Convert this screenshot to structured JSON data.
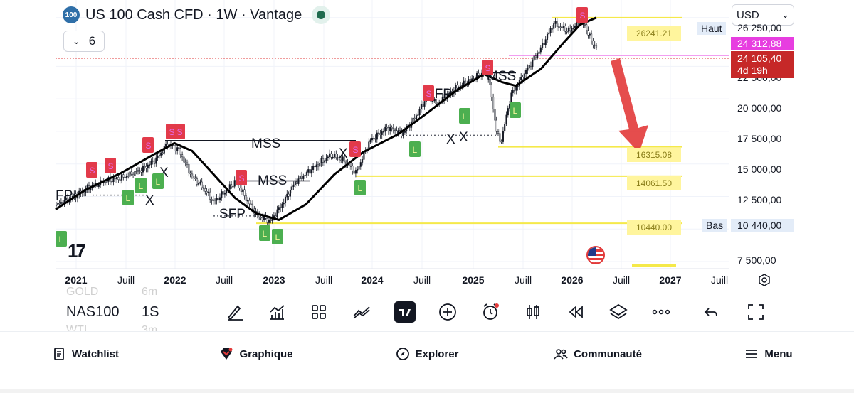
{
  "header": {
    "symbol_badge": "100",
    "title": "US 100 Cash CFD · 1W · Vantage",
    "indicators_count": "6",
    "currency": "USD"
  },
  "price_axis": {
    "labels": [
      "26 250,00",
      "22 500,00",
      "20 000,00",
      "17 500,00",
      "15 000,00",
      "12 500,00",
      "10 440,00",
      "7 500,00"
    ],
    "high_label": "Haut",
    "low_label": "Bas",
    "tag_magenta": "24 312,88",
    "tag_red_price": "24 105,40",
    "tag_red_countdown": "4d 19h",
    "tag_low": "10 440,00"
  },
  "time_axis": [
    {
      "label": "2021",
      "year": true
    },
    {
      "label": "Juill",
      "year": false
    },
    {
      "label": "2022",
      "year": true
    },
    {
      "label": "Juill",
      "year": false
    },
    {
      "label": "2023",
      "year": true
    },
    {
      "label": "Juill",
      "year": false
    },
    {
      "label": "2024",
      "year": true
    },
    {
      "label": "Juill",
      "year": false
    },
    {
      "label": "2025",
      "year": true
    },
    {
      "label": "Juill",
      "year": false
    },
    {
      "label": "2026",
      "year": true
    },
    {
      "label": "Juill",
      "year": false
    },
    {
      "label": "2027",
      "year": true
    },
    {
      "label": "Juill",
      "year": false
    }
  ],
  "levels": [
    {
      "label": "26241.21",
      "price": 26241.21
    },
    {
      "label": "16315.08",
      "price": 16315.08
    },
    {
      "label": "14061.50",
      "price": 14061.5
    },
    {
      "label": "10440.00",
      "price": 10440
    }
  ],
  "annotations": {
    "mss": "MSS",
    "sfp": "SFP",
    "x": "X",
    "sell": "S",
    "buy": "L",
    "sfp_partial": "FP"
  },
  "toolbar": {
    "symbol": "NAS100",
    "timeframe": "1S",
    "ghost_above_symbol": "GOLD",
    "ghost_above_tf": "6m",
    "ghost_below_symbol": "WTI",
    "ghost_below_tf": "3m",
    "tools": [
      "draw-icon",
      "indicators-icon",
      "layout-icon",
      "compare-icon",
      "tradingview-icon",
      "add-icon",
      "alert-icon",
      "candles-icon",
      "replay-icon",
      "layers-icon",
      "more-icon",
      "undo-icon",
      "fullscreen-icon"
    ]
  },
  "logo": "17",
  "nav": {
    "watchlist": "Watchlist",
    "chart": "Graphique",
    "explore": "Explorer",
    "community": "Communauté",
    "menu": "Menu"
  },
  "colors": {
    "up": "#131722",
    "down": "#131722",
    "sell_marker": "#e23a4a",
    "buy_marker": "#4caf50",
    "level_line": "#f5e94a",
    "arrow": "#e23a3a",
    "current_price": "#e23a3a"
  },
  "chart_data": {
    "type": "candlestick",
    "title": "US 100 Cash CFD · 1W · Vantage",
    "x": [
      "2021",
      "2021-07",
      "2022",
      "2022-07",
      "2023",
      "2023-07",
      "2024",
      "2024-07",
      "2025",
      "2025-07",
      "2026",
      "2026-07",
      "2027"
    ],
    "close_approx": [
      13000,
      15000,
      16500,
      12000,
      10800,
      15200,
      16800,
      19800,
      21400,
      23000,
      25600,
      null,
      null
    ],
    "ylim": [
      7500,
      27000
    ],
    "levels": [
      26241.21,
      16315.08,
      14061.5,
      10440
    ],
    "current_price": 24105.4,
    "high": 26241.21,
    "low": 10440
  }
}
